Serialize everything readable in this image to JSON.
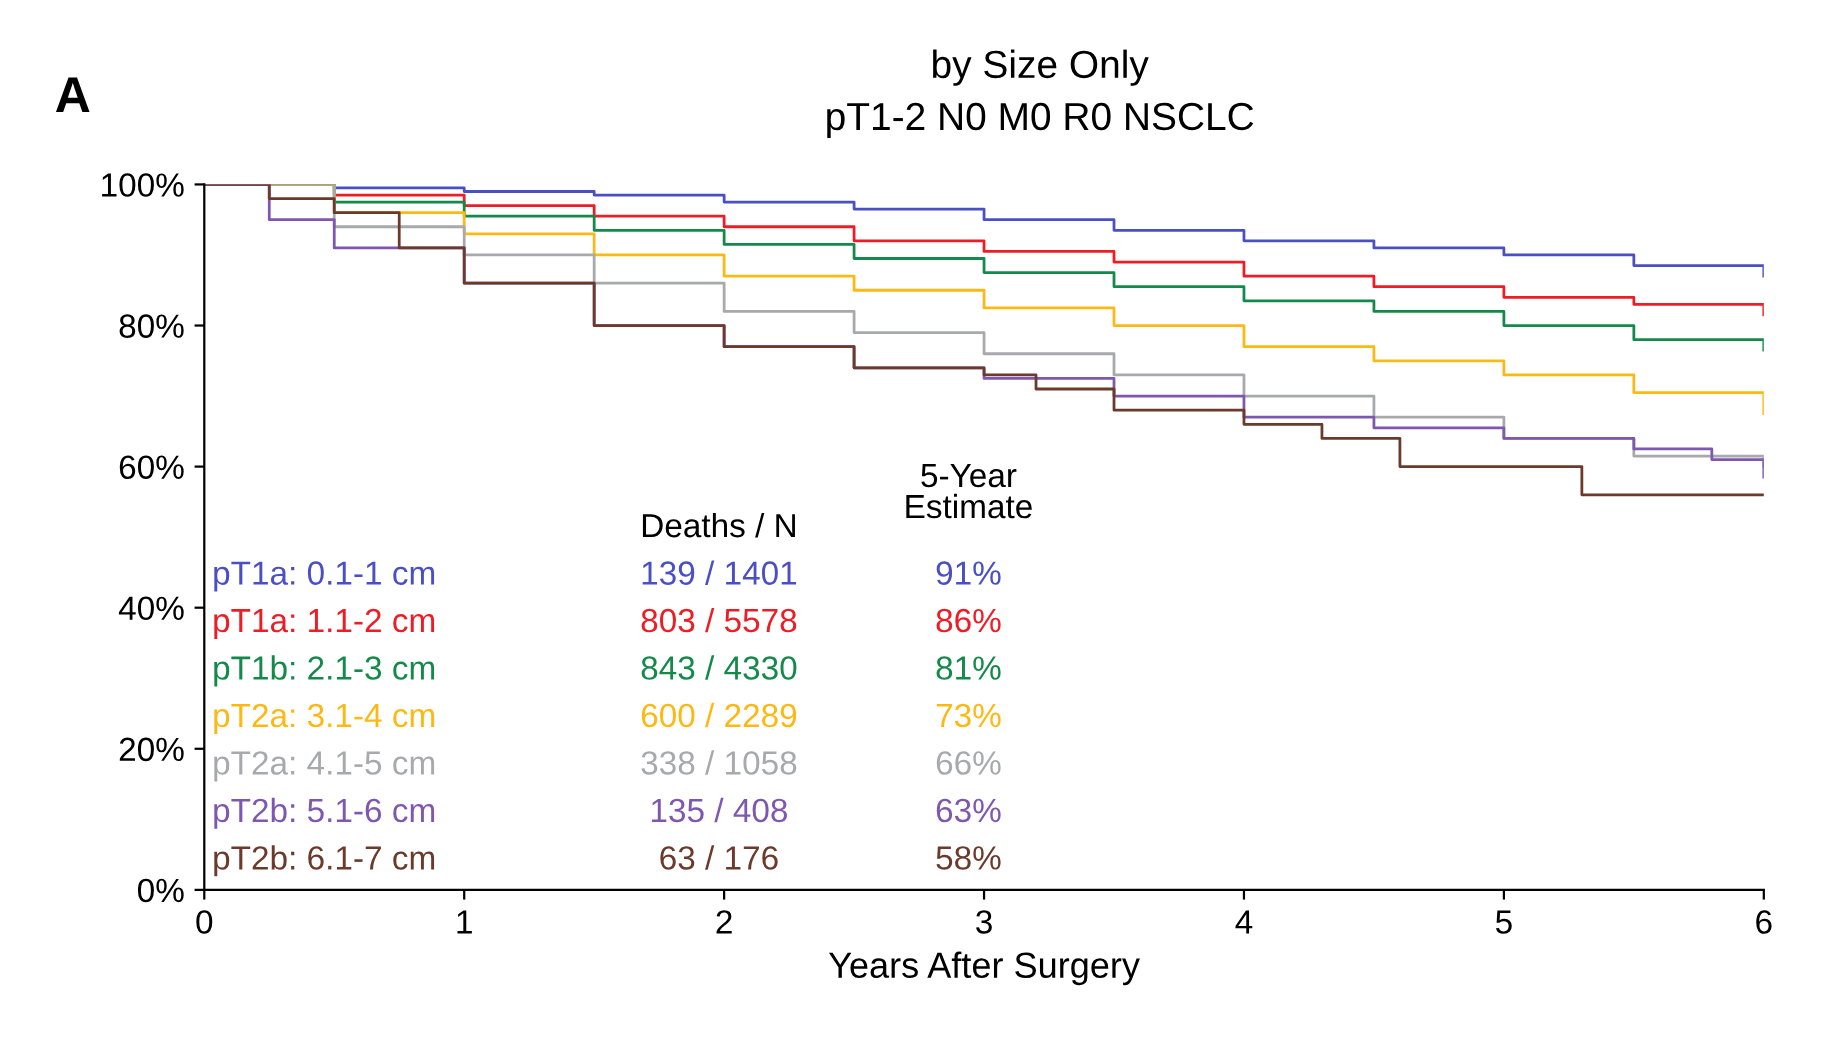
{
  "chart_data": {
    "type": "step",
    "title": "by Size Only",
    "subtitle": "pT1-2 N0 M0 R0 NSCLC",
    "xlabel": "Years After Surgery",
    "xlim": [
      0,
      6
    ],
    "xticks": [
      0,
      1,
      2,
      3,
      4,
      5,
      6
    ],
    "ylim": [
      0,
      100
    ],
    "yticks": [
      {
        "value": 0,
        "label": "0%"
      },
      {
        "value": 20,
        "label": "20%"
      },
      {
        "value": 40,
        "label": "40%"
      },
      {
        "value": 60,
        "label": "60%"
      },
      {
        "value": 80,
        "label": "80%"
      },
      {
        "value": 100,
        "label": "100%"
      }
    ],
    "grid": false,
    "series": [
      {
        "name": "pT1a: 0.1-1 cm",
        "color": "#4a4fc4",
        "x": [
          0,
          0.5,
          1,
          1.5,
          2,
          2.5,
          3,
          3.5,
          4,
          4.5,
          5,
          5.5,
          6
        ],
        "values": [
          100,
          99.5,
          99,
          98.5,
          97.5,
          96.5,
          95,
          93.5,
          92,
          91,
          90,
          88.5,
          87
        ]
      },
      {
        "name": "pT1a: 1.1-2 cm",
        "color": "#ee1c25",
        "x": [
          0,
          0.5,
          1,
          1.5,
          2,
          2.5,
          3,
          3.5,
          4,
          4.5,
          5,
          5.5,
          6
        ],
        "values": [
          100,
          98.5,
          97,
          95.5,
          94,
          92,
          90.5,
          89,
          87,
          85.5,
          84,
          83,
          81.5
        ]
      },
      {
        "name": "pT1b: 2.1-3 cm",
        "color": "#138a4a",
        "x": [
          0,
          0.5,
          1,
          1.5,
          2,
          2.5,
          3,
          3.5,
          4,
          4.5,
          5,
          5.5,
          6
        ],
        "values": [
          100,
          97.5,
          95.5,
          93.5,
          91.5,
          89.5,
          87.5,
          85.5,
          83.5,
          82,
          80,
          78,
          76.5
        ]
      },
      {
        "name": "pT2a: 3.1-4 cm",
        "color": "#fdb913",
        "x": [
          0,
          0.5,
          1,
          1.5,
          2,
          2.5,
          3,
          3.5,
          4,
          4.5,
          5,
          5.5,
          6
        ],
        "values": [
          100,
          96,
          93,
          90,
          87,
          85,
          82.5,
          80,
          77,
          75,
          73,
          70.5,
          67.5
        ]
      },
      {
        "name": "pT2a: 4.1-5 cm",
        "color": "#a7a9ac",
        "x": [
          0,
          0.5,
          1,
          1.5,
          2,
          2.5,
          3,
          3.5,
          4,
          4.5,
          5,
          5.5,
          6
        ],
        "values": [
          100,
          94,
          90,
          86,
          82,
          79,
          76,
          73,
          70,
          67,
          64,
          61.5,
          60
        ]
      },
      {
        "name": "pT2b: 5.1-6 cm",
        "color": "#7e57b0",
        "x": [
          0,
          0.25,
          0.5,
          1,
          1.5,
          2,
          2.5,
          3,
          3.5,
          4,
          4.5,
          5,
          5.5,
          5.8,
          6
        ],
        "values": [
          100,
          95,
          91,
          86,
          80,
          77,
          74,
          72.5,
          70,
          67,
          65.5,
          64,
          62.5,
          61,
          58.5
        ]
      },
      {
        "name": "pT2b: 6.1-7 cm",
        "color": "#6b3a2a",
        "x": [
          0,
          0.25,
          0.5,
          0.75,
          1,
          1.5,
          2,
          2.5,
          3,
          3.2,
          3.5,
          4,
          4.3,
          4.6,
          5.3,
          6
        ],
        "values": [
          100,
          98,
          96,
          91,
          86,
          80,
          77,
          74,
          73,
          71,
          68,
          66,
          64,
          60,
          56,
          56
        ]
      }
    ],
    "annotations": [
      "A",
      "Deaths / N",
      "5-Year\nEstimate",
      "139 / 1401",
      "91%",
      "803 / 5578",
      "86%",
      "843 / 4330",
      "81%",
      "600 / 2289",
      "73%",
      "338 / 1058",
      "66%",
      "135 / 408",
      "63%",
      "63 / 176",
      "58%"
    ]
  }
}
